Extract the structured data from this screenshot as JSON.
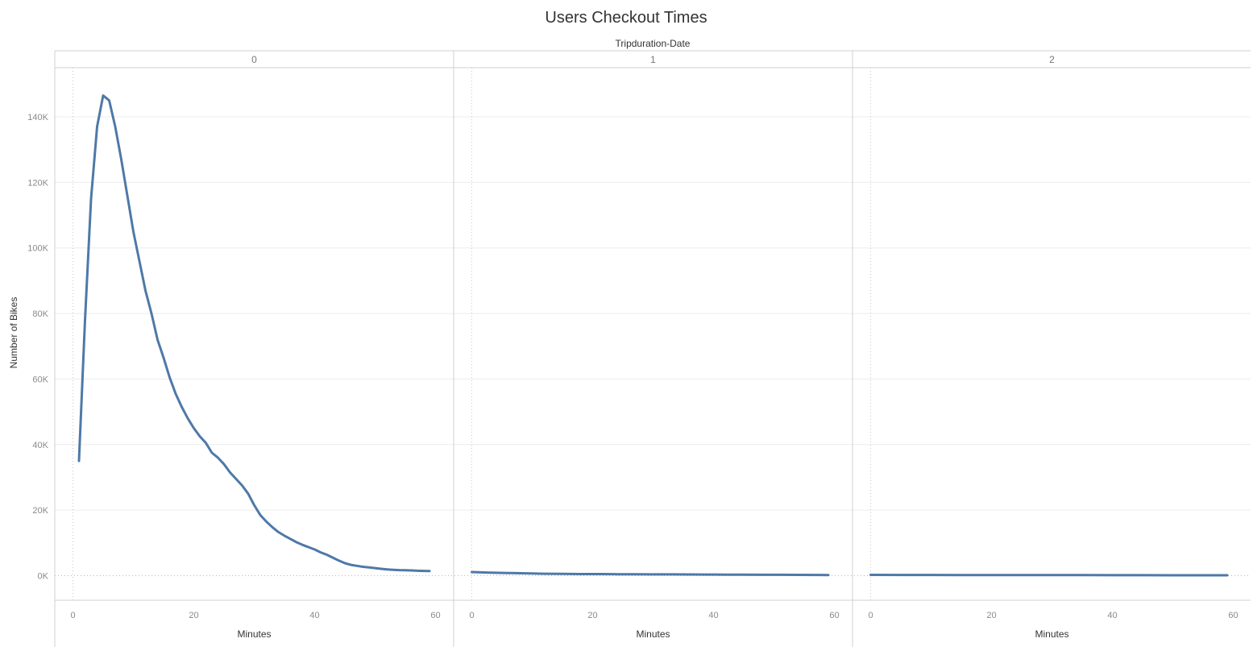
{
  "chart_data": {
    "type": "line",
    "title": "Users Checkout Times",
    "column_header": "Tripduration-Date",
    "ylabel": "Number of Bikes",
    "xlabel": "Minutes",
    "ylim": [
      -7500,
      155000
    ],
    "xlim": [
      -3,
      63
    ],
    "y_ticks": [
      0,
      20000,
      40000,
      60000,
      80000,
      100000,
      120000,
      140000
    ],
    "y_tick_labels": [
      "0K",
      "20K",
      "40K",
      "60K",
      "80K",
      "100K",
      "120K",
      "140K"
    ],
    "x_ticks": [
      0,
      20,
      40,
      60
    ],
    "x_tick_labels": [
      "0",
      "20",
      "40",
      "60"
    ],
    "grid": true,
    "line_color": "#4e79a7",
    "panels": [
      {
        "label": "0",
        "x": [
          1,
          2,
          3,
          4,
          5,
          6,
          7,
          8,
          9,
          10,
          11,
          12,
          13,
          14,
          15,
          16,
          17,
          18,
          19,
          20,
          21,
          22,
          23,
          24,
          25,
          26,
          27,
          28,
          29,
          30,
          31,
          32,
          33,
          34,
          35,
          36,
          37,
          38,
          39,
          40,
          41,
          42,
          43,
          44,
          45,
          46,
          47,
          48,
          49,
          50,
          51,
          52,
          53,
          54,
          55,
          56,
          57,
          58,
          59
        ],
        "values": [
          35000,
          78000,
          115000,
          137000,
          146500,
          145000,
          137000,
          127000,
          116000,
          105000,
          96000,
          87000,
          80000,
          72000,
          66500,
          60500,
          55500,
          51500,
          48000,
          45000,
          42500,
          40500,
          37500,
          36000,
          34000,
          31500,
          29500,
          27500,
          25000,
          21500,
          18500,
          16500,
          14800,
          13300,
          12200,
          11200,
          10200,
          9400,
          8700,
          8000,
          7100,
          6400,
          5500,
          4600,
          3800,
          3300,
          3000,
          2700,
          2500,
          2300,
          2100,
          1900,
          1800,
          1700,
          1650,
          1600,
          1500,
          1450,
          1400
        ]
      },
      {
        "label": "1",
        "x": [
          0,
          3,
          6,
          9,
          12,
          15,
          18,
          21,
          24,
          27,
          30,
          33,
          36,
          39,
          42,
          45,
          48,
          51,
          54,
          57,
          59
        ],
        "values": [
          1100,
          900,
          800,
          700,
          600,
          550,
          500,
          480,
          450,
          420,
          400,
          380,
          360,
          340,
          320,
          300,
          280,
          260,
          240,
          220,
          200
        ]
      },
      {
        "label": "2",
        "x": [
          0,
          5,
          10,
          15,
          20,
          25,
          30,
          35,
          40,
          45,
          50,
          55,
          59
        ],
        "values": [
          250,
          230,
          210,
          200,
          190,
          180,
          170,
          160,
          150,
          140,
          130,
          120,
          110
        ]
      }
    ]
  }
}
